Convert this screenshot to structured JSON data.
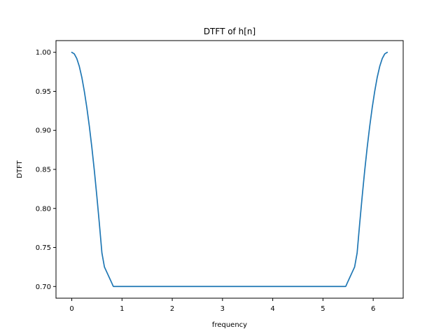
{
  "chart_data": {
    "type": "line",
    "title": "DTFT of h[n]",
    "xlabel": "frequency",
    "ylabel": "DTFT",
    "xlim": [
      -0.314,
      6.597
    ],
    "ylim": [
      0.685,
      1.015
    ],
    "xticks": [
      0,
      1,
      2,
      3,
      4,
      5,
      6
    ],
    "xtick_labels": [
      "0",
      "1",
      "2",
      "3",
      "4",
      "5",
      "6"
    ],
    "yticks": [
      0.7,
      0.75,
      0.8,
      0.85,
      0.9,
      0.95,
      1.0
    ],
    "ytick_labels": [
      "0.70",
      "0.75",
      "0.80",
      "0.85",
      "0.90",
      "0.95",
      "1.00"
    ],
    "grid": false,
    "series": [
      {
        "color": "#1f77b4",
        "x": [
          0.0,
          0.05,
          0.1,
          0.15,
          0.2,
          0.25,
          0.3,
          0.35,
          0.4,
          0.45,
          0.5,
          0.55,
          0.6,
          0.65,
          0.7,
          0.75,
          0.8,
          0.82,
          0.83,
          1.0,
          1.5,
          2.0,
          2.5,
          3.0,
          3.5,
          4.0,
          4.5,
          5.0,
          5.45,
          5.46,
          5.48,
          5.53,
          5.58,
          5.63,
          5.68,
          5.73,
          5.78,
          5.83,
          5.88,
          5.93,
          5.98,
          6.03,
          6.08,
          6.13,
          6.18,
          6.23,
          6.28
        ],
        "y": [
          1.0,
          0.998,
          0.992,
          0.982,
          0.968,
          0.95,
          0.929,
          0.905,
          0.878,
          0.848,
          0.815,
          0.78,
          0.743,
          0.725,
          0.718,
          0.711,
          0.704,
          0.701,
          0.7,
          0.7,
          0.7,
          0.7,
          0.7,
          0.7,
          0.7,
          0.7,
          0.7,
          0.7,
          0.7,
          0.701,
          0.704,
          0.711,
          0.718,
          0.725,
          0.743,
          0.78,
          0.815,
          0.848,
          0.878,
          0.905,
          0.929,
          0.95,
          0.968,
          0.982,
          0.992,
          0.998,
          1.0
        ]
      }
    ]
  }
}
